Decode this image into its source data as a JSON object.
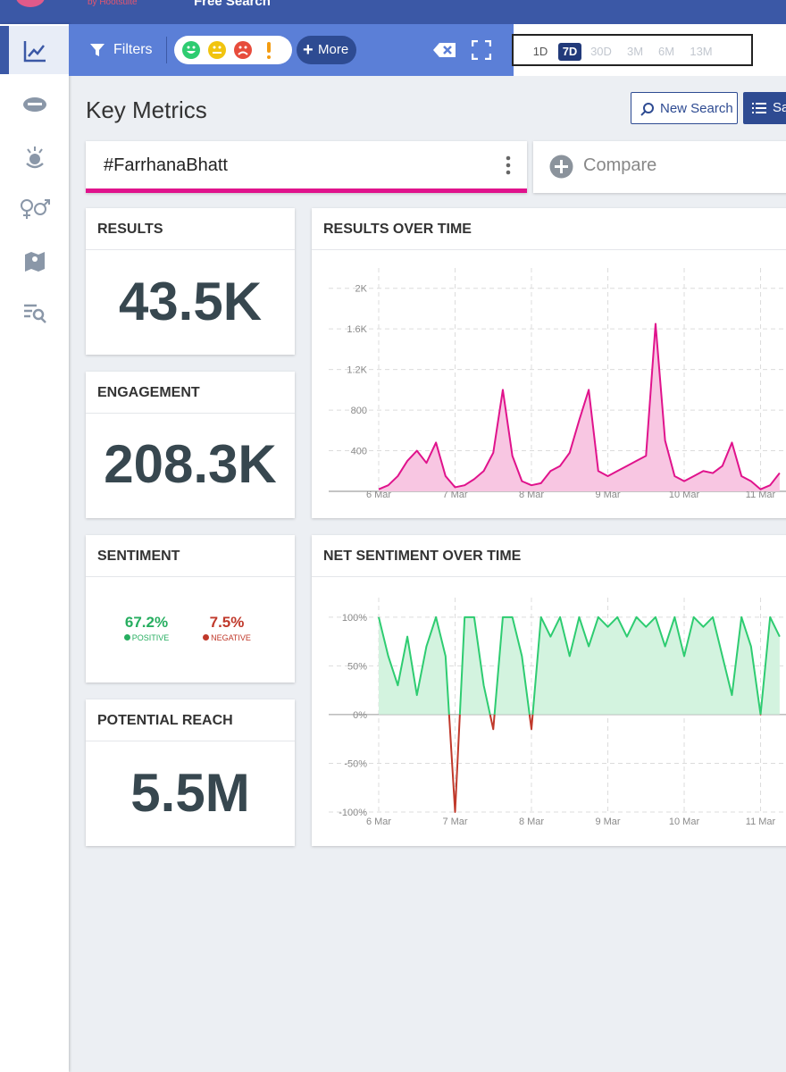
{
  "header": {
    "brand": "by Hootsuite",
    "title": "Free Search"
  },
  "toolbar": {
    "filters": "Filters",
    "more": "More",
    "time_ranges": [
      "1D",
      "7D",
      "30D",
      "3M",
      "6M",
      "13M"
    ],
    "selected_range": "7D"
  },
  "page": {
    "title": "Key Metrics",
    "new_search": "New Search",
    "save": "Save"
  },
  "search": {
    "query": "#FarrhanaBhatt",
    "compare": "Compare"
  },
  "metrics": [
    {
      "label": "RESULTS",
      "value": "43.5K"
    },
    {
      "label": "ENGAGEMENT",
      "value": "208.3K"
    },
    {
      "label": "POTENTIAL REACH",
      "value": "5.5M"
    }
  ],
  "sentiment": {
    "label": "SENTIMENT",
    "positive": {
      "value": "67.2%",
      "label": "POSITIVE"
    },
    "negative": {
      "value": "7.5%",
      "label": "NEGATIVE"
    }
  },
  "chart_data": [
    {
      "type": "line",
      "title": "RESULTS OVER TIME",
      "color": "#e0138c",
      "fill": "#f8c6e2",
      "grid": true,
      "x": [
        0,
        0.125,
        0.25,
        0.375,
        0.5,
        0.625,
        0.75,
        0.875,
        1,
        1.125,
        1.25,
        1.375,
        1.5,
        1.625,
        1.75,
        1.875,
        2,
        2.125,
        2.25,
        2.375,
        2.5,
        2.625,
        2.75,
        2.875,
        3,
        3.125,
        3.25,
        3.375,
        3.5,
        3.625,
        3.75,
        3.875,
        4,
        4.125,
        4.25,
        4.375,
        4.5,
        4.625,
        4.75,
        4.875,
        5,
        5.125,
        5.25
      ],
      "values": [
        20,
        60,
        150,
        300,
        400,
        280,
        480,
        150,
        40,
        60,
        120,
        200,
        380,
        1000,
        350,
        100,
        60,
        80,
        200,
        250,
        380,
        700,
        1000,
        200,
        150,
        200,
        250,
        300,
        350,
        1650,
        500,
        150,
        100,
        150,
        200,
        180,
        250,
        480,
        150,
        100,
        20,
        60,
        180
      ],
      "xlim": [
        -0.655,
        5.567
      ],
      "xticks": [
        {
          "value": 0,
          "label": "6 Mar"
        },
        {
          "value": 1,
          "label": "7 Mar"
        },
        {
          "value": 2,
          "label": "8 Mar"
        },
        {
          "value": 3,
          "label": "9 Mar"
        },
        {
          "value": 4,
          "label": "10 Mar"
        },
        {
          "value": 5,
          "label": "11 Mar"
        }
      ],
      "ylim": [
        0,
        2200
      ],
      "yticks": [
        400,
        800,
        {
          "value": 1200,
          "label": "1.2K"
        },
        {
          "value": 1600,
          "label": "1.6K"
        },
        {
          "value": 2000,
          "label": "2K"
        }
      ]
    },
    {
      "type": "line",
      "title": "NET SENTIMENT OVER TIME",
      "color": "#2ecc71",
      "fill": "#d3f3df",
      "negative_color": "#c0392b",
      "grid": true,
      "x": [
        0,
        0.125,
        0.25,
        0.375,
        0.5,
        0.625,
        0.75,
        0.875,
        1,
        1.125,
        1.25,
        1.375,
        1.5,
        1.625,
        1.75,
        1.875,
        2,
        2.125,
        2.25,
        2.375,
        2.5,
        2.625,
        2.75,
        2.875,
        3,
        3.125,
        3.25,
        3.375,
        3.5,
        3.625,
        3.75,
        3.875,
        4,
        4.125,
        4.25,
        4.375,
        4.5,
        4.625,
        4.75,
        4.875,
        5,
        5.125,
        5.25
      ],
      "values": [
        100,
        60,
        30,
        80,
        20,
        70,
        100,
        60,
        -100,
        100,
        100,
        30,
        -15,
        100,
        100,
        60,
        -15,
        100,
        80,
        100,
        60,
        100,
        70,
        100,
        90,
        100,
        80,
        100,
        90,
        100,
        70,
        100,
        60,
        100,
        90,
        100,
        60,
        20,
        100,
        70,
        0,
        100,
        80
      ],
      "xlim": [
        -0.655,
        5.567
      ],
      "xticks": [
        {
          "value": 0,
          "label": "6 Mar"
        },
        {
          "value": 1,
          "label": "7 Mar"
        },
        {
          "value": 2,
          "label": "8 Mar"
        },
        {
          "value": 3,
          "label": "9 Mar"
        },
        {
          "value": 4,
          "label": "10 Mar"
        },
        {
          "value": 5,
          "label": "11 Mar"
        }
      ],
      "ylim": [
        -100,
        120
      ],
      "yticks": [
        {
          "value": -100,
          "label": "-100%"
        },
        {
          "value": -50,
          "label": "-50%"
        },
        {
          "value": 0,
          "label": "0%"
        },
        {
          "value": 50,
          "label": "50%"
        },
        {
          "value": 100,
          "label": "100%"
        }
      ]
    }
  ]
}
